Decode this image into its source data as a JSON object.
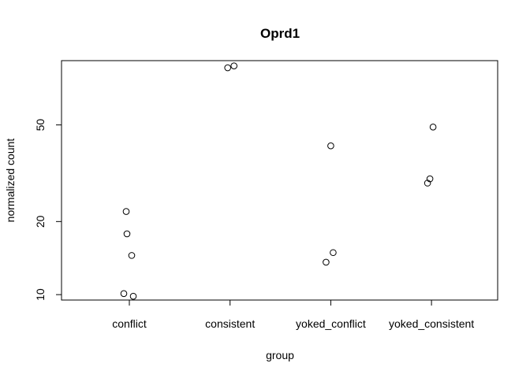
{
  "chart_data": {
    "type": "scatter",
    "title": "Oprd1",
    "xlabel": "group",
    "ylabel": "normalized count",
    "categories": [
      "conflict",
      "consistent",
      "yoked_conflict",
      "yoked_consistent"
    ],
    "y_scale": "log",
    "ylim": [
      9.5,
      92
    ],
    "yticks": [
      10,
      20,
      50
    ],
    "grid": false,
    "legend": "none",
    "points": [
      {
        "category": "conflict",
        "y": 22.0
      },
      {
        "category": "conflict",
        "y": 17.8
      },
      {
        "category": "conflict",
        "y": 14.5
      },
      {
        "category": "conflict",
        "y": 10.1
      },
      {
        "category": "conflict",
        "y": 9.85
      },
      {
        "category": "consistent",
        "y": 86.0
      },
      {
        "category": "consistent",
        "y": 87.5
      },
      {
        "category": "yoked_conflict",
        "y": 41.0
      },
      {
        "category": "yoked_conflict",
        "y": 14.9
      },
      {
        "category": "yoked_conflict",
        "y": 13.6
      },
      {
        "category": "yoked_consistent",
        "y": 49.0
      },
      {
        "category": "yoked_consistent",
        "y": 30.0
      },
      {
        "category": "yoked_consistent",
        "y": 28.8
      }
    ]
  }
}
